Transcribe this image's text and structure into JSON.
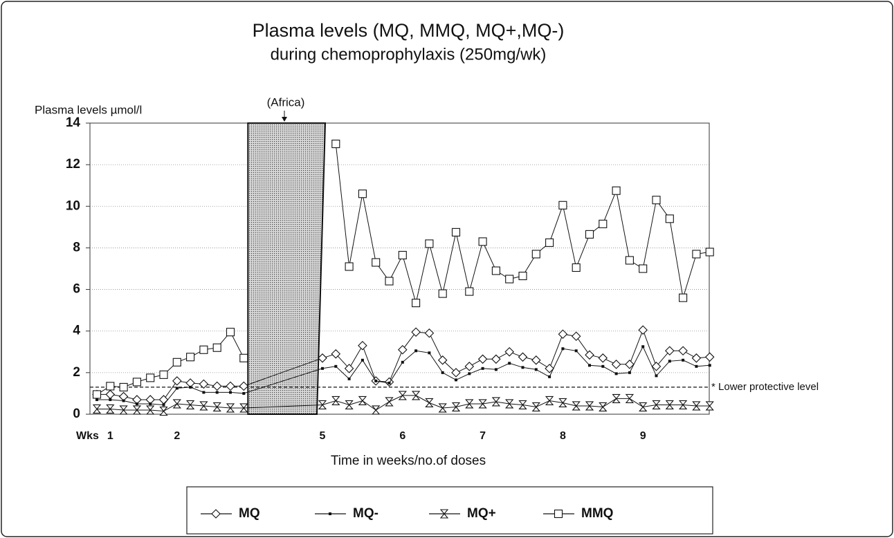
{
  "chart_data": {
    "type": "line",
    "title": "Plasma levels (MQ, MMQ, MQ+,MQ-)",
    "subtitle": "during chemoprophylaxis (250mg/wk)",
    "y_label": "Plasma levels  µmol/l",
    "x_label": "Time in weeks/no.of doses",
    "x_tick_prefix": "Wks",
    "annotation": "(Africa)",
    "reference_line": {
      "value": 1.3,
      "label": "* Lower protective level"
    },
    "ylim": [
      0,
      14
    ],
    "yticks": [
      0,
      2,
      4,
      6,
      8,
      10,
      12,
      14
    ],
    "grid": true,
    "categories": [
      null,
      "1",
      null,
      null,
      null,
      null,
      "2",
      null,
      null,
      null,
      null,
      null,
      "5",
      null,
      null,
      null,
      null,
      null,
      "6",
      null,
      null,
      null,
      null,
      null,
      "7",
      null,
      null,
      null,
      null,
      null,
      "8",
      null,
      null,
      null,
      null,
      null,
      "9",
      null,
      null,
      null,
      null,
      null
    ],
    "series": [
      {
        "name": "MQ",
        "color": "#111111",
        "marker": "diamond",
        "values": [
          0.95,
          0.95,
          0.85,
          0.7,
          0.7,
          0.7,
          1.6,
          1.5,
          1.45,
          1.35,
          1.35,
          1.35,
          2.7,
          2.9,
          2.2,
          3.3,
          1.6,
          1.55,
          3.1,
          3.95,
          3.9,
          2.6,
          2.0,
          2.3,
          2.65,
          2.65,
          3.0,
          2.75,
          2.6,
          2.2,
          3.85,
          3.75,
          2.85,
          2.7,
          2.4,
          2.4,
          4.05,
          2.3,
          3.05,
          3.05,
          2.7,
          2.75
        ]
      },
      {
        "name": "MQ-",
        "color": "#111111",
        "marker": "dot",
        "values": [
          0.7,
          0.7,
          0.65,
          0.5,
          0.5,
          0.45,
          1.25,
          1.3,
          1.05,
          1.05,
          1.05,
          1.0,
          2.2,
          2.3,
          1.7,
          2.6,
          1.6,
          1.5,
          2.5,
          3.05,
          2.95,
          2.0,
          1.65,
          1.95,
          2.2,
          2.15,
          2.45,
          2.25,
          2.15,
          1.8,
          3.15,
          3.05,
          2.35,
          2.3,
          1.95,
          2.0,
          3.25,
          1.85,
          2.55,
          2.6,
          2.3,
          2.35
        ]
      },
      {
        "name": "MQ+",
        "color": "#111111",
        "marker": "hourglass",
        "values": [
          0.25,
          0.25,
          0.2,
          0.2,
          0.2,
          0.15,
          0.5,
          0.45,
          0.4,
          0.35,
          0.3,
          0.3,
          0.45,
          0.65,
          0.45,
          0.65,
          0.2,
          0.6,
          0.9,
          0.9,
          0.55,
          0.3,
          0.35,
          0.5,
          0.5,
          0.6,
          0.5,
          0.45,
          0.35,
          0.65,
          0.55,
          0.4,
          0.4,
          0.35,
          0.75,
          0.75,
          0.35,
          0.45,
          0.45,
          0.45,
          0.4,
          0.4
        ]
      },
      {
        "name": "MMQ",
        "color": "#111111",
        "marker": "square",
        "values": [
          0.95,
          1.35,
          1.3,
          1.55,
          1.75,
          1.9,
          2.5,
          2.75,
          3.1,
          3.2,
          3.95,
          2.7,
          null,
          13.0,
          7.1,
          10.6,
          7.3,
          6.4,
          7.65,
          5.35,
          8.2,
          5.8,
          8.75,
          5.9,
          8.3,
          6.9,
          6.5,
          6.65,
          7.7,
          8.25,
          10.05,
          7.05,
          8.65,
          9.15,
          10.75,
          7.4,
          7.0,
          10.3,
          9.4,
          5.6,
          7.7,
          7.8
        ]
      }
    ]
  }
}
